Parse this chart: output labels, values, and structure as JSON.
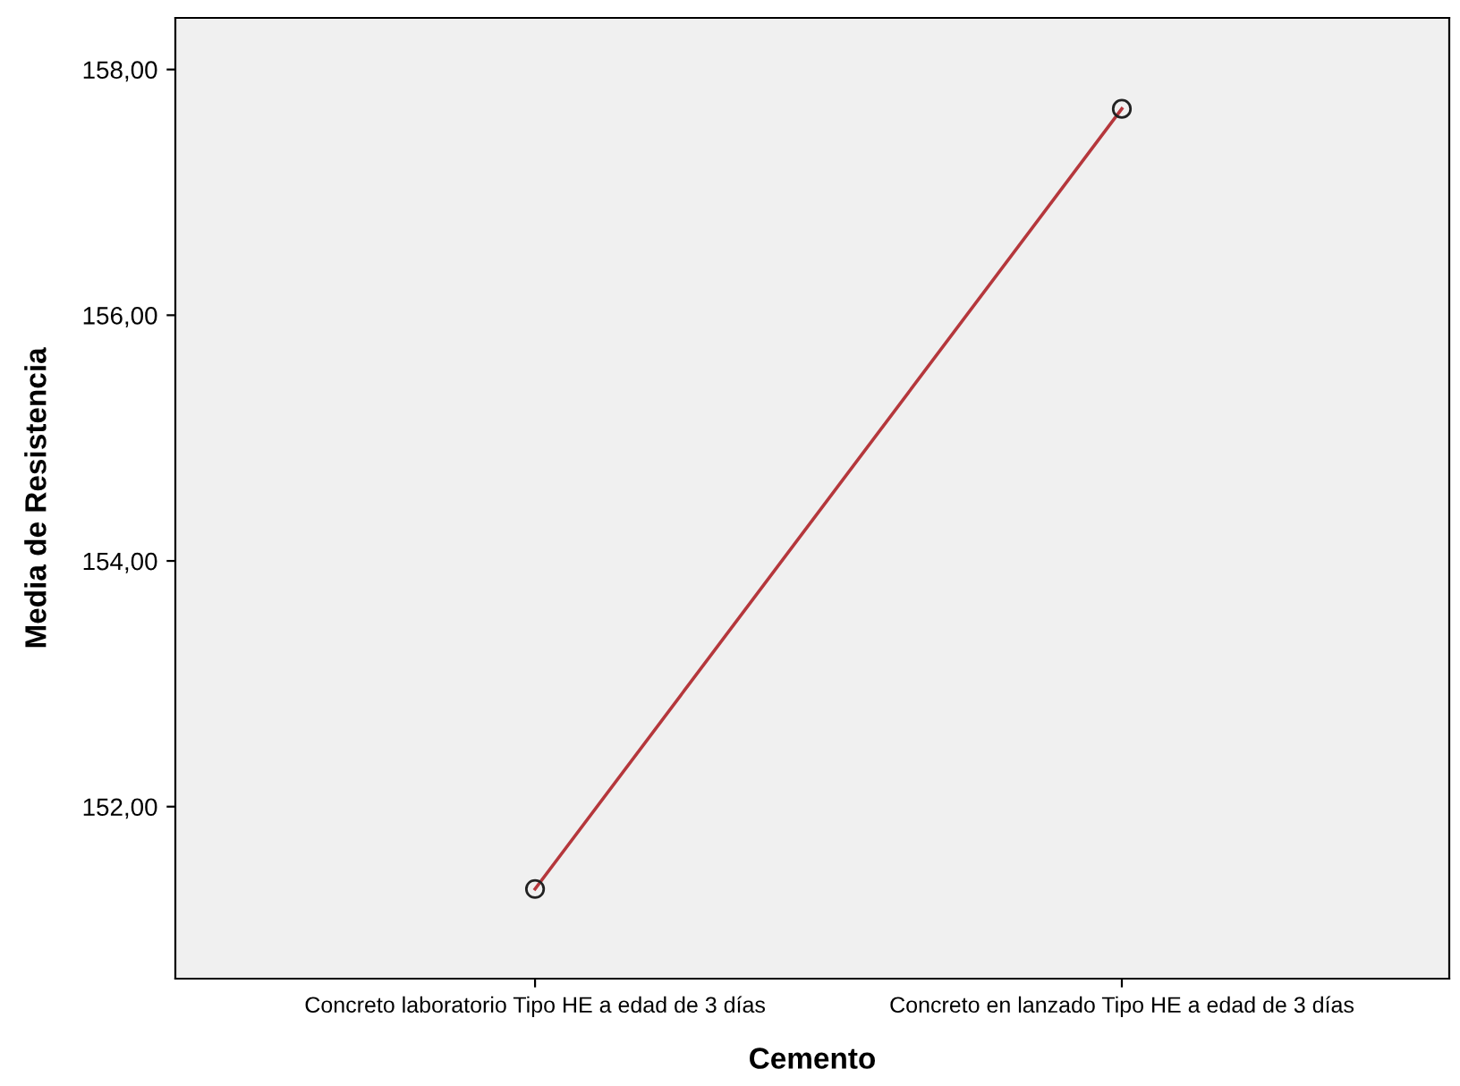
{
  "chart_data": {
    "type": "line",
    "xlabel": "Cemento",
    "ylabel": "Media de Resistencia",
    "categories": [
      "Concreto laboratorio Tipo HE a edad de 3 días",
      "Concreto en lanzado Tipo HE a edad de 3 días"
    ],
    "series": [
      {
        "color": "#b5373c",
        "values": [
          151.33,
          157.68
        ]
      }
    ],
    "ylim": [
      150.6,
      158.42
    ],
    "yticks": [
      {
        "value": 152,
        "label": "152,00"
      },
      {
        "value": 154,
        "label": "154,00"
      },
      {
        "value": 156,
        "label": "156,00"
      },
      {
        "value": 158,
        "label": "158,00"
      }
    ],
    "marker": "circle",
    "grid": false,
    "legend": false
  }
}
